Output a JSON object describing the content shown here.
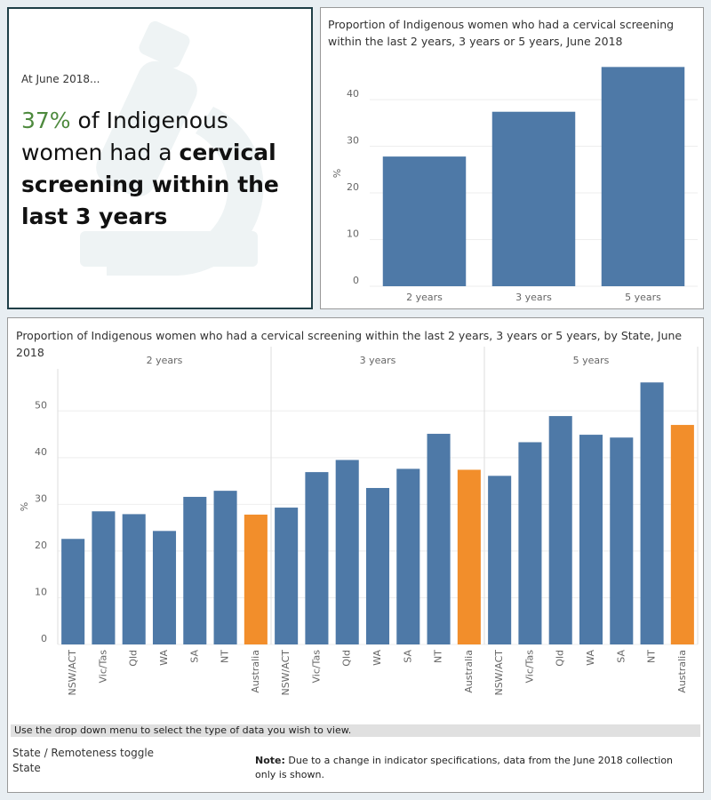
{
  "summary": {
    "intro": "At June 2018...",
    "highlight": "37%",
    "text": " of Indigenous women had a ",
    "bold_text": "cervical screening within the last 3 years"
  },
  "chart_data": [
    {
      "type": "bar",
      "title": "Proportion of Indigenous women who had a cervical screening within the last 2 years, 3 years or 5 years, June 2018",
      "categories": [
        "2 years",
        "3 years",
        "5 years"
      ],
      "values": [
        27.8,
        37.4,
        47.0
      ],
      "color": "#4e79a7",
      "ylabel": "%",
      "ylim": [
        0,
        48.4
      ],
      "yticks": [
        0,
        10,
        20,
        30,
        40
      ],
      "grid": true
    },
    {
      "type": "faceted_bar",
      "title": "Proportion of Indigenous women who had a cervical screening within the last 2 years, 3 years or 5 years, by State, June 2018",
      "categories": [
        "NSW/ACT",
        "Vic/Tas",
        "Qld",
        "WA",
        "SA",
        "NT",
        "Australia"
      ],
      "bar_colors": [
        "#4e79a7",
        "#4e79a7",
        "#4e79a7",
        "#4e79a7",
        "#4e79a7",
        "#4e79a7",
        "#f28e2b"
      ],
      "facets": [
        {
          "name": "2 years",
          "values": [
            22.6,
            28.5,
            27.9,
            24.3,
            31.6,
            32.9,
            27.8
          ]
        },
        {
          "name": "3 years",
          "values": [
            29.3,
            36.9,
            39.5,
            33.5,
            37.6,
            45.1,
            37.4
          ]
        },
        {
          "name": "5 years",
          "values": [
            36.1,
            43.3,
            48.9,
            44.9,
            44.3,
            56.1,
            47.0
          ]
        }
      ],
      "ylabel": "%",
      "ylim": [
        0,
        59
      ],
      "yticks": [
        0,
        10,
        20,
        30,
        40,
        50
      ],
      "grid": true
    }
  ],
  "footer": {
    "instruction": "Use the drop down menu to select the type of data you wish to view.",
    "toggle_label": "State / Remoteness toggle",
    "toggle_value": "State",
    "note_label": "Note:",
    "note": " Due to a change in indicator specifications, data from the June 2018 collection only is shown."
  }
}
